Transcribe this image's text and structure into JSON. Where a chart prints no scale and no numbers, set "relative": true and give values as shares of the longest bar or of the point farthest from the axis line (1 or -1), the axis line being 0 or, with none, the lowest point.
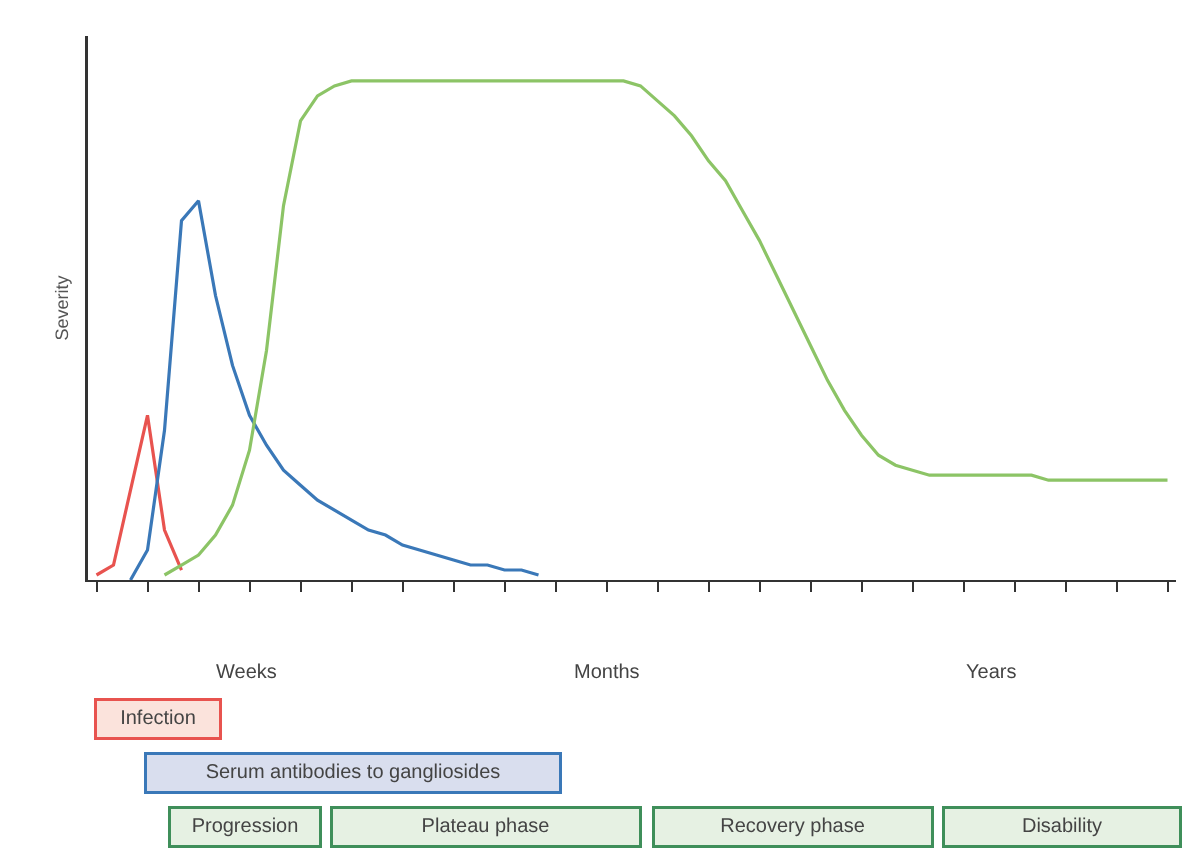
{
  "chart_data": {
    "type": "line",
    "relative": true,
    "ylabel": "Severity",
    "marker": "none",
    "line_style": "solid",
    "categories": [
      null,
      null,
      null,
      null,
      null,
      null,
      null,
      null,
      null,
      null,
      null,
      null,
      null,
      null,
      null,
      null,
      null,
      null,
      null,
      null,
      null,
      null,
      null,
      null,
      null,
      null,
      null,
      null,
      null,
      null,
      null,
      null,
      null,
      null,
      null,
      null,
      null,
      null,
      null,
      null,
      null,
      null,
      null,
      null,
      null,
      null,
      null,
      null,
      null,
      null,
      null,
      null,
      null,
      null,
      null,
      null,
      null,
      null,
      null,
      null,
      null,
      null,
      null,
      null
    ],
    "series": [
      {
        "color": "#e8534f",
        "values": [
          0.01,
          0.03,
          0.18,
          0.33,
          0.1,
          0.02,
          null,
          null,
          null,
          null,
          null,
          null,
          null,
          null,
          null,
          null,
          null,
          null,
          null,
          null,
          null,
          null,
          null,
          null,
          null,
          null,
          null,
          null,
          null,
          null,
          null,
          null,
          null,
          null,
          null,
          null,
          null,
          null,
          null,
          null,
          null,
          null,
          null,
          null,
          null,
          null,
          null,
          null,
          null,
          null,
          null,
          null,
          null,
          null,
          null,
          null,
          null,
          null,
          null,
          null,
          null,
          null,
          null,
          null
        ]
      },
      {
        "color": "#3a78b8",
        "values": [
          null,
          null,
          0.0,
          0.06,
          0.3,
          0.72,
          0.76,
          0.57,
          0.43,
          0.33,
          0.27,
          0.22,
          0.19,
          0.16,
          0.14,
          0.12,
          0.1,
          0.09,
          0.07,
          0.06,
          0.05,
          0.04,
          0.03,
          0.03,
          0.02,
          0.02,
          0.01,
          null,
          null,
          null,
          null,
          null,
          null,
          null,
          null,
          null,
          null,
          null,
          null,
          null,
          null,
          null,
          null,
          null,
          null,
          null,
          null,
          null,
          null,
          null,
          null,
          null,
          null,
          null,
          null,
          null,
          null,
          null,
          null,
          null,
          null,
          null,
          null,
          null
        ]
      },
      {
        "color": "#8cc466",
        "values": [
          null,
          null,
          null,
          null,
          0.01,
          0.03,
          0.05,
          0.09,
          0.15,
          0.26,
          0.46,
          0.75,
          0.92,
          0.97,
          0.99,
          1,
          1,
          1,
          1,
          1,
          1,
          1,
          1,
          1,
          1,
          1,
          1,
          1,
          1,
          1,
          1,
          1,
          0.99,
          0.96,
          0.93,
          0.89,
          0.84,
          0.8,
          0.74,
          0.68,
          0.61,
          0.54,
          0.47,
          0.4,
          0.34,
          0.29,
          0.25,
          0.23,
          0.22,
          0.21,
          0.21,
          0.21,
          0.21,
          0.21,
          0.21,
          0.21,
          0.2,
          0.2,
          0.2,
          0.2,
          0.2,
          0.2,
          0.2,
          0.2
        ]
      }
    ],
    "annotations": [
      "Weeks",
      "Months",
      "Years",
      "Infection",
      "Serum antibodies to gangliosides",
      "Progression",
      "Plateau phase",
      "Recovery phase",
      "Disability"
    ]
  }
}
